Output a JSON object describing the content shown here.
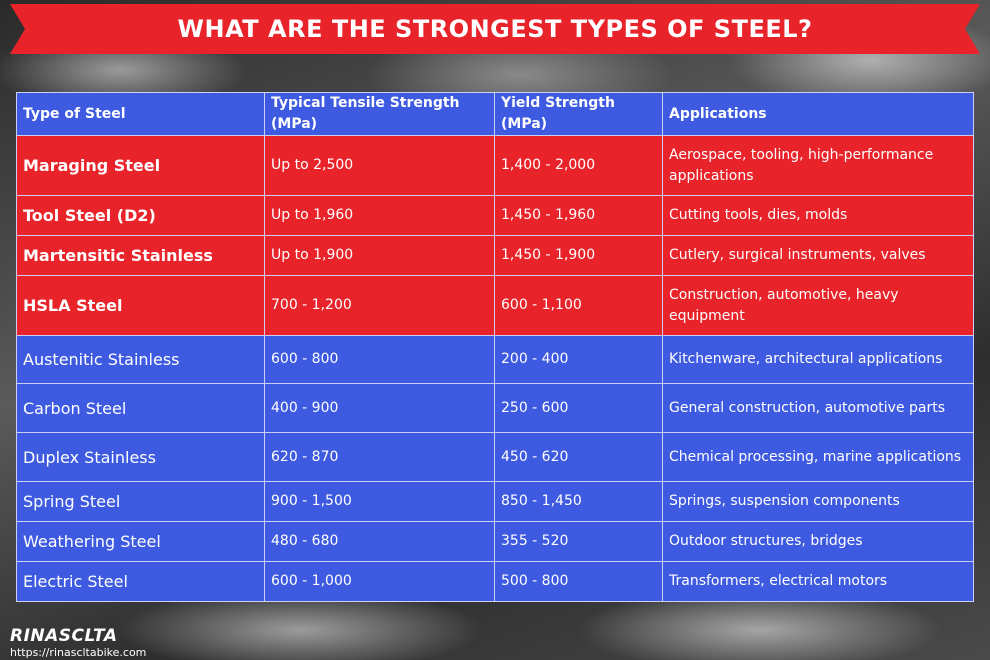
{
  "header": {
    "title": "WHAT ARE THE STRONGEST TYPES OF STEEL?"
  },
  "table": {
    "headers": [
      "Type of Steel",
      "Typical Tensile Strength (MPa)",
      "Yield Strength (MPa)",
      "Applications"
    ],
    "header_color": "#3d5ae0",
    "rows": [
      [
        "Maraging Steel",
        "Up to 2,500",
        "1,400 - 2,000",
        "Aerospace, tooling, high-performance applications"
      ],
      [
        "Tool Steel (D2)",
        "Up to 1,960",
        "1,450 - 1,960",
        "Cutting tools, dies, molds"
      ],
      [
        "Martensitic Stainless",
        "Up to 1,900",
        "1,450 - 1,900",
        "Cutlery, surgical instruments, valves"
      ],
      [
        "HSLA Steel",
        "700 - 1,200",
        "600 - 1,100",
        "Construction, automotive, heavy equipment"
      ],
      [
        "Austenitic Stainless",
        "600 - 800",
        "200 - 400",
        "Kitchenware, architectural applications"
      ],
      [
        "Carbon Steel",
        "400 - 900",
        "250 - 600",
        "General construction, automotive parts"
      ],
      [
        "Duplex Stainless",
        "620 - 870",
        "450 - 620",
        "Chemical processing, marine applications"
      ],
      [
        "Spring Steel",
        "900 - 1,500",
        "850 - 1,450",
        "Springs, suspension components"
      ],
      [
        "Weathering Steel",
        "480 - 680",
        "355 - 520",
        "Outdoor structures, bridges"
      ],
      [
        "Electric Steel",
        "600 - 1,000",
        "500 - 800",
        "Transformers, electrical motors"
      ]
    ],
    "row_colors": [
      "#e8232a",
      "#e8232a",
      "#e8232a",
      "#e8232a",
      "#3d5ae0",
      "#3d5ae0",
      "#3d5ae0",
      "#3d5ae0",
      "#3d5ae0",
      "#3d5ae0"
    ]
  },
  "footer": {
    "brand": "RINASCLTA",
    "url": "https://rinascltabike.com"
  }
}
